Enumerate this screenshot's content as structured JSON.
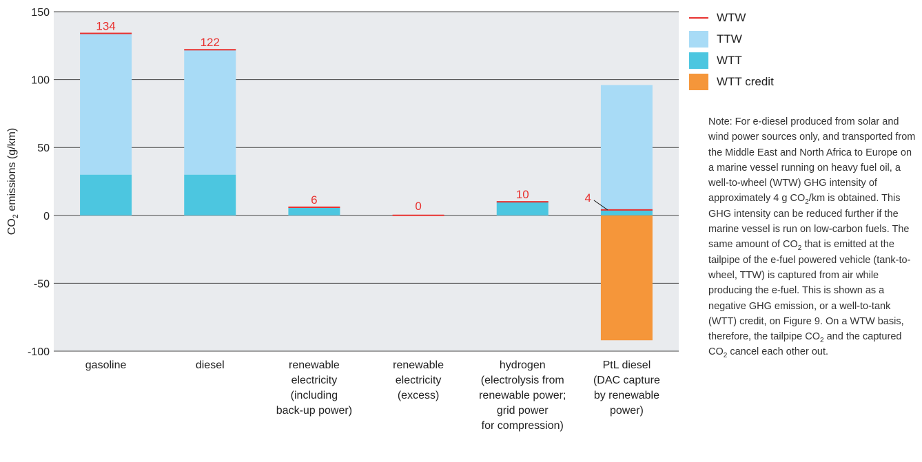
{
  "colors": {
    "wtw": "#e8312f",
    "ttw": "#a8dbf6",
    "wtt": "#4cc6e0",
    "wtt_credit": "#f5963a",
    "plot_bg": "#e9ebee",
    "grid": "#444444"
  },
  "chart_data": {
    "type": "bar",
    "stacked": true,
    "ylabel_main": "CO",
    "ylabel_sub": "2",
    "ylabel_rest": " emissions (g/km)",
    "ylim": [
      -100,
      150
    ],
    "yticks": [
      150,
      100,
      50,
      0,
      -50,
      -100
    ],
    "ytick_labels": [
      "150",
      "100",
      "50",
      "0",
      "-50",
      "-100"
    ],
    "grid": true,
    "legend_position": "right",
    "categories": [
      [
        "gasoline"
      ],
      [
        "diesel"
      ],
      [
        "renewable",
        "electricity",
        "(including",
        "back-up power)"
      ],
      [
        "renewable",
        "electricity",
        "(excess)"
      ],
      [
        "hydrogen",
        "(electrolysis from",
        "renewable power;",
        "grid power",
        "for compression)"
      ],
      [
        "PtL diesel",
        "(DAC capture",
        "by renewable",
        "power)"
      ]
    ],
    "series": [
      {
        "name": "WTT",
        "values": [
          30,
          30,
          6,
          0,
          10,
          4
        ]
      },
      {
        "name": "TTW",
        "values": [
          104,
          92,
          0,
          0,
          0,
          92
        ]
      },
      {
        "name": "WTT credit",
        "values": [
          0,
          0,
          0,
          0,
          0,
          -92
        ]
      }
    ],
    "wtw": {
      "name": "WTW",
      "values": [
        134,
        122,
        6,
        0,
        10,
        4
      ],
      "labels": [
        "134",
        "122",
        "6",
        "0",
        "10",
        "4"
      ]
    }
  },
  "legend": {
    "items": [
      {
        "label": "WTW"
      },
      {
        "label": "TTW"
      },
      {
        "label": "WTT"
      },
      {
        "label": "WTT credit"
      }
    ]
  },
  "note": {
    "part1": "Note: For e-diesel produced from solar and wind power sources only, and transported from the Middle East and North Africa to Europe on a marine vessel running on heavy fuel oil, a well-to-wheel (WTW) GHG intensity of approximately 4 g CO",
    "sub1": "2",
    "part2": "/km is obtained. This GHG intensity can be reduced further if the marine vessel is run on low-carbon fuels. The same amount of CO",
    "sub2": "2",
    "part3": " that is emitted at the tailpipe of the e-fuel powered vehicle (tank-to-wheel, TTW) is captured from air while producing the e-fuel. This is shown as a negative GHG emission, or a well-to-tank (WTT) credit, on Figure 9. On a WTW basis, therefore, the tailpipe CO",
    "sub3": "2",
    "part4": " and the captured CO",
    "sub4": "2",
    "part5": " cancel each other out."
  }
}
